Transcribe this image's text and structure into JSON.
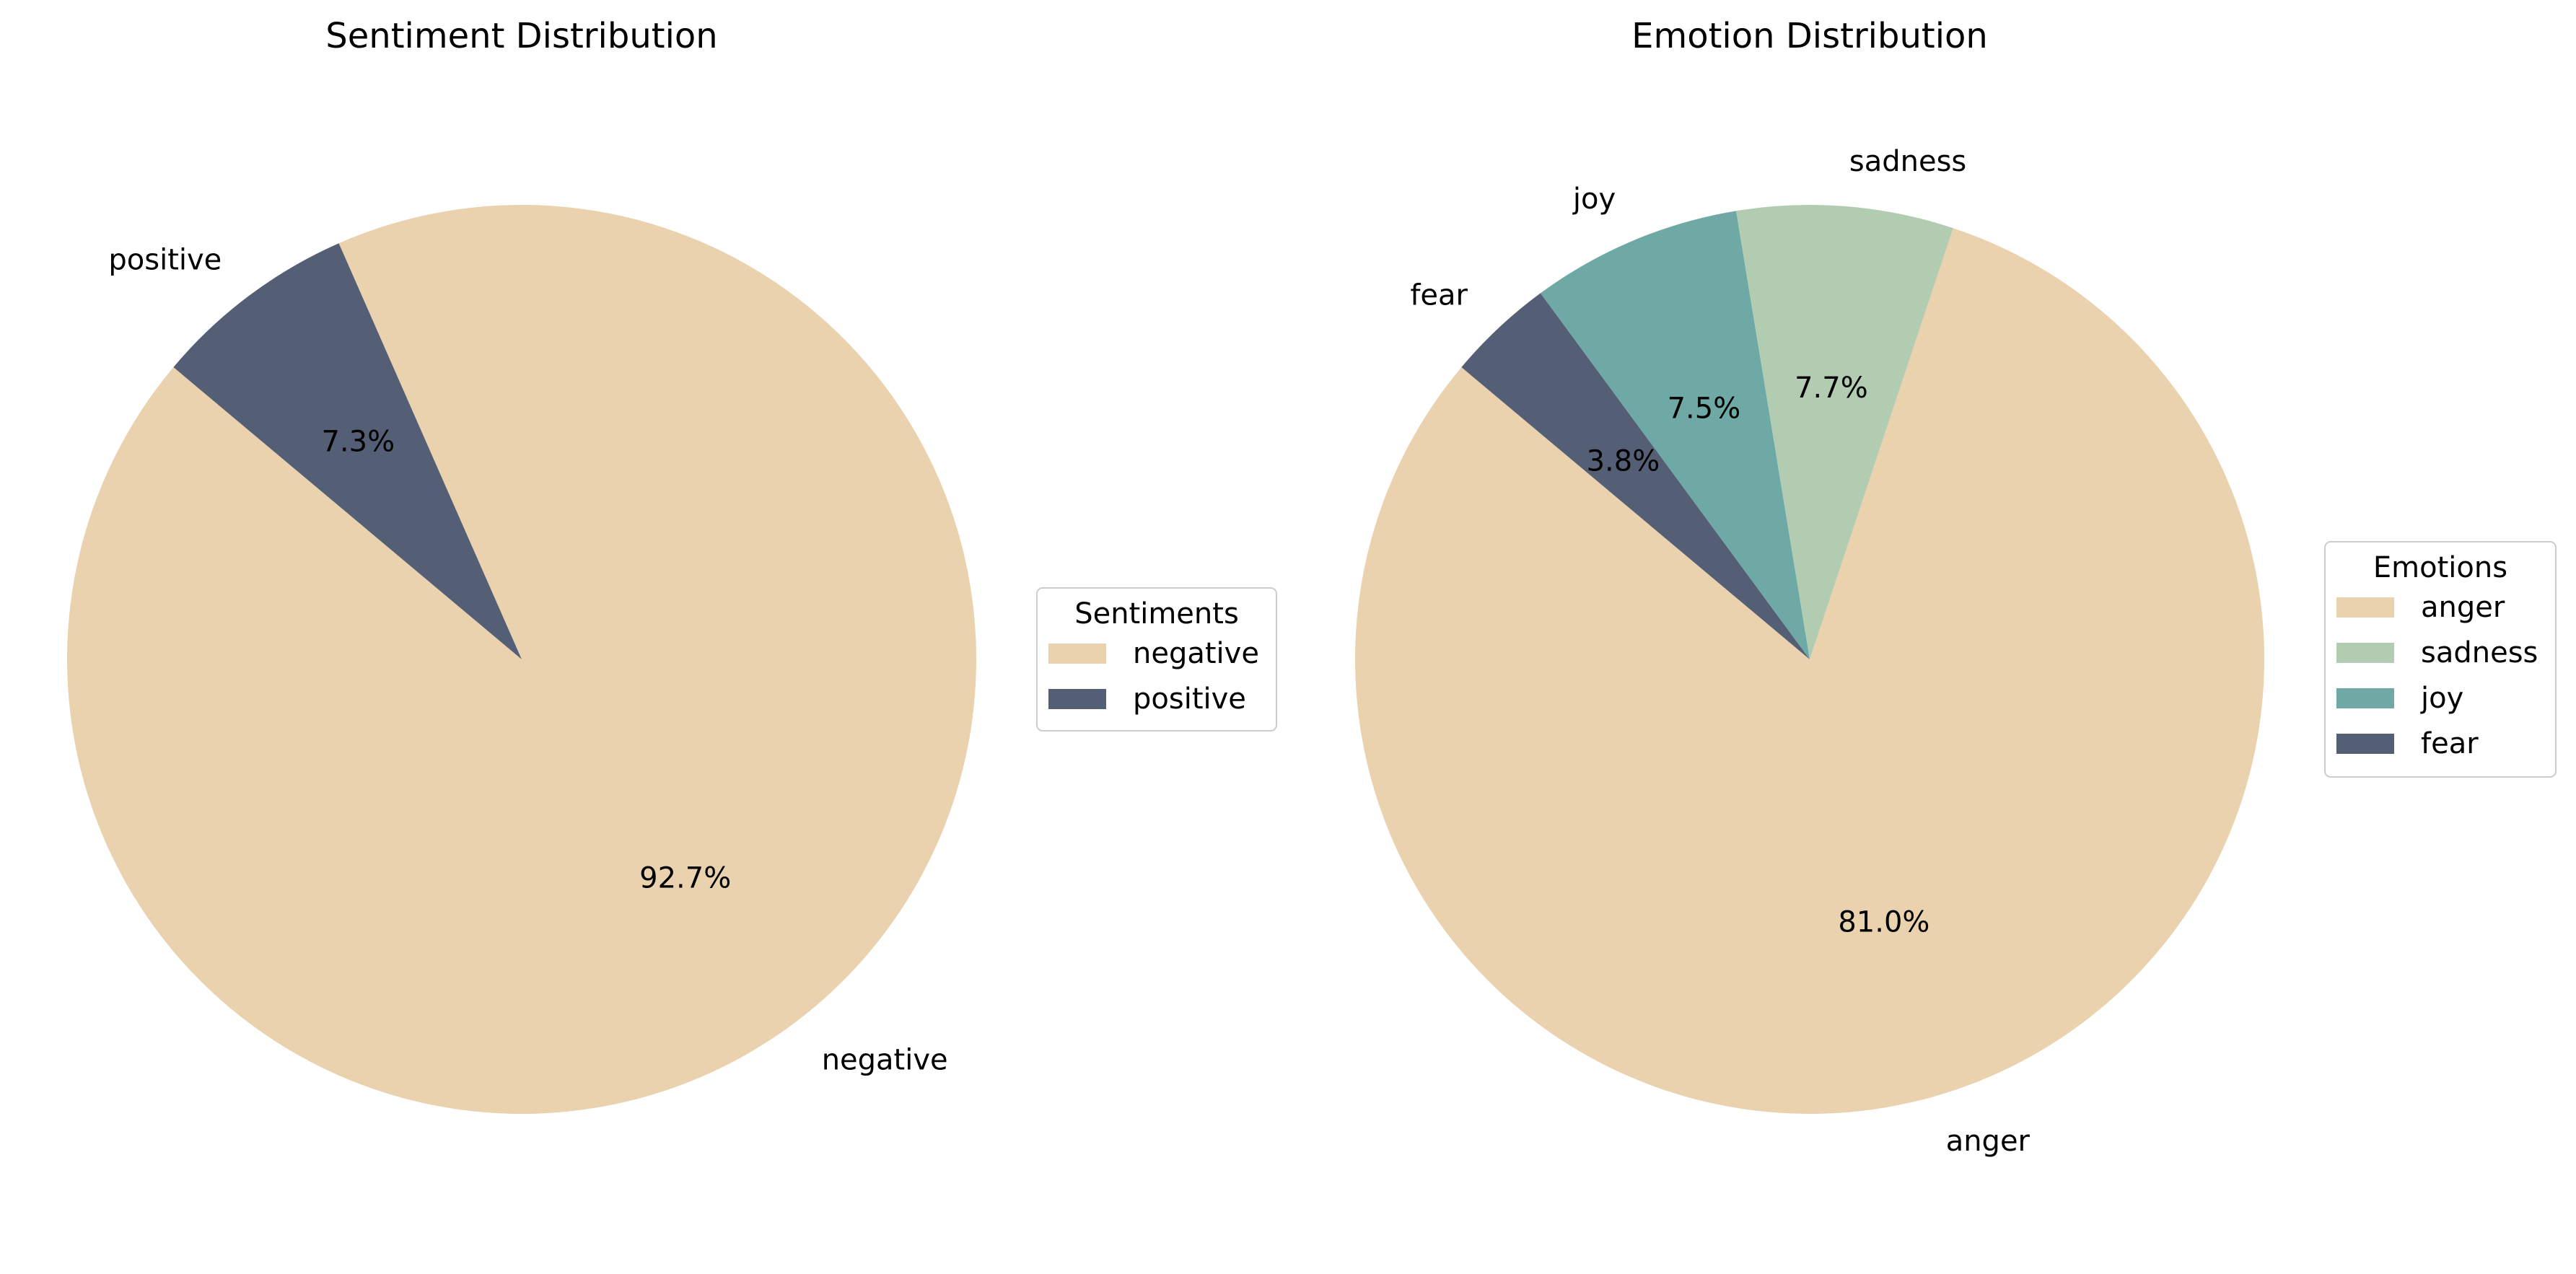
{
  "chart_data": [
    {
      "type": "pie",
      "title": "Sentiment Distribution",
      "legend_title": "Sentiments",
      "legend_position": "right",
      "start_angle_deg": 140,
      "categories": [
        "negative",
        "positive"
      ],
      "values": [
        92.7,
        7.3
      ],
      "percent_labels": [
        "92.7%",
        "7.3%"
      ],
      "colors": [
        "#E9D2AD",
        "#545F76"
      ]
    },
    {
      "type": "pie",
      "title": "Emotion Distribution",
      "legend_title": "Emotions",
      "legend_position": "right",
      "start_angle_deg": 140,
      "categories": [
        "anger",
        "sadness",
        "joy",
        "fear"
      ],
      "values": [
        81.0,
        7.7,
        7.5,
        3.8
      ],
      "percent_labels": [
        "81.0%",
        "7.7%",
        "7.5%",
        "3.8%"
      ],
      "colors": [
        "#E9D2AD",
        "#B2CCB1",
        "#6EA9A5",
        "#545F76"
      ]
    }
  ]
}
